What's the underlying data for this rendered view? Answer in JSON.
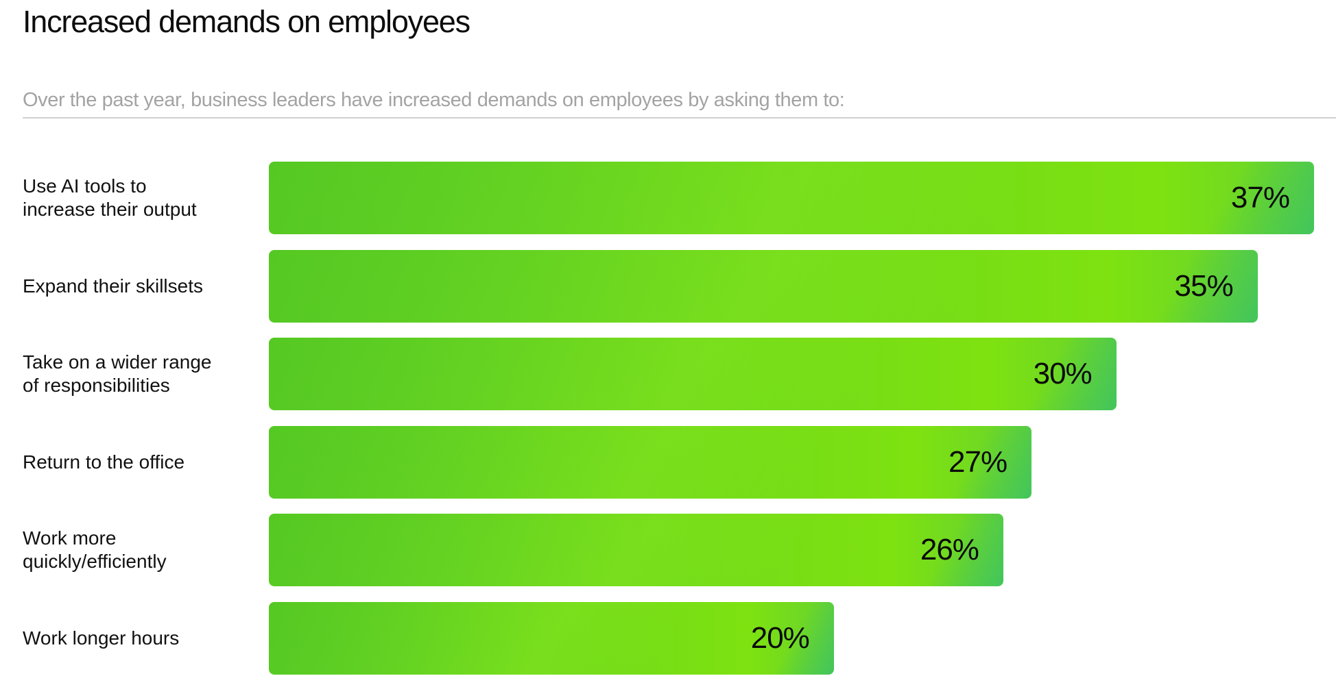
{
  "title": "Increased demands on employees",
  "subtitle": "Over the past year, business leaders have increased demands on employees by asking them to:",
  "colors": {
    "bar_base": "#6fd81c",
    "bar_dark": "#4dc21e",
    "bar_light": "#8ee81e",
    "bar_edge": "#3cc364",
    "text": "#111111",
    "subtitle": "#a3a3a3",
    "rule": "#cfcfcf"
  },
  "chart_data": {
    "type": "bar",
    "orientation": "horizontal",
    "title": "Increased demands on employees",
    "subtitle": "Over the past year, business leaders have increased demands on employees by asking them to:",
    "categories": [
      "Use AI tools to\nincrease their output",
      "Expand their skillsets",
      "Take on a wider range\nof responsibilities",
      "Return to the office",
      "Work more\nquickly/efficiently",
      "Work longer hours"
    ],
    "values": [
      37,
      35,
      30,
      27,
      26,
      20
    ],
    "value_labels": [
      "37%",
      "35%",
      "30%",
      "27%",
      "26%",
      "20%"
    ],
    "unit": "%",
    "grid": false,
    "legend": "none"
  }
}
